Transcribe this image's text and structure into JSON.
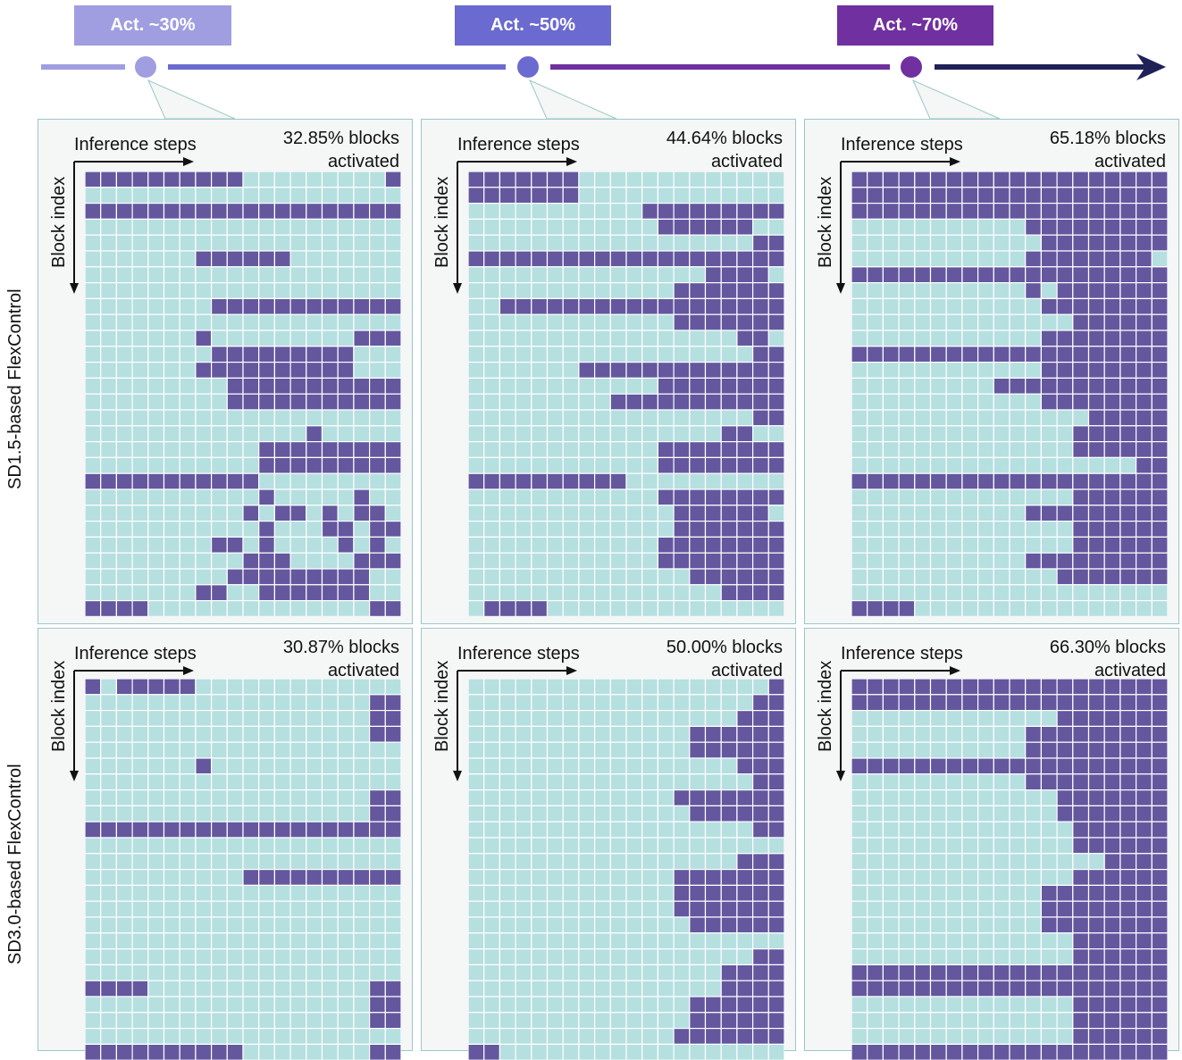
{
  "timeline": {
    "tags": [
      {
        "label": "Act. ~30%",
        "color": "#a09ee0"
      },
      {
        "label": "Act. ~50%",
        "color": "#6b6ad0"
      },
      {
        "label": "Act. ~70%",
        "color": "#7030a0"
      }
    ],
    "segment_colors": [
      "#a09ee0",
      "#6b6ad0",
      "#7030a0",
      "#1f2157"
    ]
  },
  "rows": [
    {
      "label": "SD1.5-based FlexControl"
    },
    {
      "label": "SD3.0-based FlexControl"
    }
  ],
  "panel_text": {
    "steps": "Inference steps",
    "block": "Block index",
    "activated": "activated"
  },
  "panels": [
    {
      "percent": "32.85% blocks",
      "grid": [
        "11111111110000000001",
        "00000000000000000000",
        "11111111111111111111",
        "00000000000000000000",
        "00000000000000000000",
        "00000001111110000000",
        "00000000000000000000",
        "00000000000000000000",
        "00000000111111111111",
        "00000000000000000000",
        "00000001000000000111",
        "00000000111111111000",
        "00000001111111111000",
        "00000000011111111111",
        "00000000011111111111",
        "00000000000000000000",
        "00000000000000100000",
        "00000000000111111111",
        "00000000000111111111",
        "11111111111000000000",
        "00000000000100000100",
        "00000000001011010110",
        "00000000000100011011",
        "00000000110100001010",
        "00000000001110000111",
        "00000000011111111100",
        "00000001100111111100",
        "11110000000000000011"
      ]
    },
    {
      "percent": "44.64% blocks",
      "grid": [
        "11111110000000000000",
        "11111110000000000000",
        "00000000000111111111",
        "00000000000011111100",
        "00000000000000000011",
        "11111111111111111111",
        "00000000000000011110",
        "00000000000001111111",
        "00111111111111111111",
        "00000000000001111111",
        "00000000000000000110",
        "00000000000000000011",
        "00000001111111111111",
        "00000000000011111111",
        "00000000011111111111",
        "00000000000000000011",
        "00000000000000001100",
        "00000000000011111111",
        "00000000000011111111",
        "11111111110000000000",
        "00000000000011111111",
        "00000000000001111110",
        "00000000000001111111",
        "00000000000011111111",
        "00000000000011111111",
        "00000000000000111111",
        "00000000000000001111",
        "01111000000000000000"
      ]
    },
    {
      "percent": "65.18% blocks",
      "grid": [
        "11111111111111111111",
        "11111111111111111111",
        "11111111111111111111",
        "00000000000111111111",
        "00000000000011111111",
        "00000000000111111110",
        "11111111111111111111",
        "00000000000101111111",
        "00000000000011111111",
        "00000000000000111111",
        "00000000000011111111",
        "11111111111111111111",
        "00000000000011111111",
        "00000000011111111111",
        "00000000000011111111",
        "00000000000000011111",
        "00000000000000111111",
        "00000000000000111111",
        "00000000000000000011",
        "11111111111111111111",
        "00000000000000111111",
        "00000000000111111111",
        "00000000000000111111",
        "00000000000000111111",
        "00000000000111111111",
        "00000000000001111111",
        "00000000000000000000",
        "11110000000000000000"
      ]
    },
    {
      "percent": "30.87% blocks",
      "grid": [
        "10111110000000000000",
        "00000000000000000011",
        "00000000000000000011",
        "00000000000000000011",
        "00000000000000000000",
        "00000001000000000000",
        "00000000000000000000",
        "00000000000000000011",
        "00000000000000000011",
        "11111111111111111111",
        "00000000000000000000",
        "00000000000000000000",
        "00000000001111111111",
        "00000000000000000000",
        "00000000000000000000",
        "00000000000000000000",
        "00000000000000000000",
        "00000000000000000000",
        "00000000000000000000",
        "11110000000000000011",
        "00000000000000000011",
        "00000000000000000011",
        "00000000000000000000",
        "11111111110000000011"
      ]
    },
    {
      "percent": "50.00% blocks",
      "grid": [
        "00000000000000000001",
        "00000000000000000011",
        "00000000000000000111",
        "00000000000000111111",
        "00000000000000111111",
        "00000000000000000111",
        "00000000000000000011",
        "00000000000001111111",
        "00000000000000111111",
        "00000000000000000011",
        "00000000000000000000",
        "00000000000000000111",
        "00000000000001111111",
        "00000000000001111111",
        "00000000000001111111",
        "00000000000000111111",
        "00000000000000000000",
        "00000000000000000011",
        "00000000000000001111",
        "00000000000000001111",
        "00000000000000111111",
        "00000000000000111111",
        "00000000000001111111",
        "11000000000000000000"
      ]
    },
    {
      "percent": "66.30% blocks",
      "grid": [
        "11111111111111111111",
        "11111111111111111111",
        "00000000000001111111",
        "00000000000111111111",
        "00000000000111111111",
        "11111111111111111111",
        "00000000000111111111",
        "00000000000001111111",
        "00000000000001111111",
        "00000000000000111111",
        "00000000000000111111",
        "00000000000000001111",
        "00000000000000111111",
        "00000000000011111111",
        "00000000000011111111",
        "00000000000011111111",
        "00000000000000111111",
        "00000000000000111111",
        "11111111111111111111",
        "11111111111111111111",
        "00000000000000111111",
        "00000000000000111111",
        "00000000000000111111",
        "11111111111111111111"
      ]
    }
  ]
}
